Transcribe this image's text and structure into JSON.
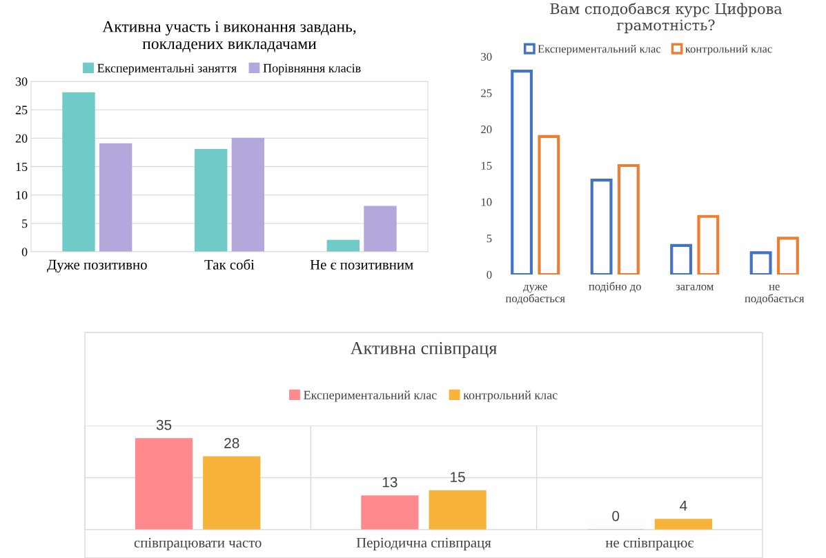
{
  "chart_data": [
    {
      "type": "bar",
      "title": "Активна участь і виконання завдань,\nпокладених викладачами",
      "categories": [
        "Дуже позитивно",
        "Так собі",
        "Не є позитивним"
      ],
      "series": [
        {
          "name": "Експериментальні заняття",
          "color": "#70cac8",
          "values": [
            28,
            18,
            2
          ]
        },
        {
          "name": "Порівняння класів",
          "color": "#b4a7dc",
          "values": [
            19,
            20,
            8
          ]
        }
      ],
      "ylim": [
        0,
        30
      ],
      "yticks": [
        0,
        5,
        10,
        15,
        20,
        25,
        30
      ],
      "grid": "y",
      "legend": "top"
    },
    {
      "type": "bar",
      "title": "Вам сподобався курс Цифрова\nграмотність?",
      "categories": [
        "дуже подобається",
        "подібно до",
        "загалом",
        "не подобається"
      ],
      "series": [
        {
          "name": "Експериментальний клас",
          "color": "#4472c4",
          "values": [
            28,
            13,
            4,
            3
          ]
        },
        {
          "name": "контрольний клас",
          "color": "#ed7d31",
          "values": [
            19,
            15,
            8,
            5
          ]
        }
      ],
      "ylim": [
        0,
        30
      ],
      "yticks": [
        0,
        5,
        10,
        15,
        20,
        25,
        30
      ],
      "legend": "top"
    },
    {
      "type": "bar",
      "title": "Активна співпраця",
      "categories": [
        "співпрацювати часто",
        "Періодична співпраця",
        "не співпрацює"
      ],
      "series": [
        {
          "name": "Експериментальний клас",
          "color": "#ff8a8e",
          "values": [
            35,
            13,
            0
          ]
        },
        {
          "name": "контрольний клас",
          "color": "#f7b33a",
          "values": [
            28,
            15,
            4
          ]
        }
      ],
      "ylim": [
        0,
        40
      ],
      "yticks": [
        {
          "value": 0,
          "label": null
        },
        {
          "value": 20,
          "label": null
        },
        {
          "value": 40,
          "label": null
        }
      ],
      "grid": "y",
      "legend": "top",
      "data_labels": true,
      "tick_labels": "x"
    }
  ]
}
